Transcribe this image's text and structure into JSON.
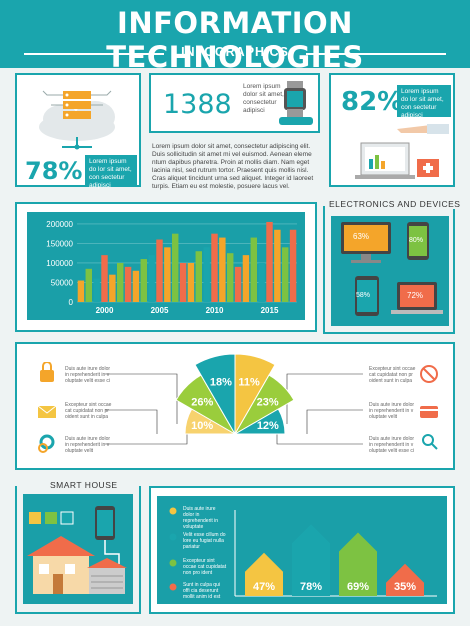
{
  "header": {
    "title": "INFORMATION TECHNOLOGIES",
    "subtitle": "INFOGRAPHICS"
  },
  "stats": {
    "cloud_pct": "78%",
    "cloud_text": "Lorem ipsum do lor sit amet, con sectetur adipisci",
    "count": "1388",
    "count_text": "Lorem ipsum dolor sit amet, consectetur adipisci",
    "devices_pct": "82%",
    "devices_text": "Lorem ipsum do lor sit amet, con sectetur adipisci",
    "center_text": "Lorem ipsum dolor sit amet, consectetur adipiscing elit. Duis sollicitudin sit amet mi vel euismod. Aenean eleme ntum dapibus pharetra. Proin at mollis diam. Nam eget lacinia nisl, sed rutrum tortor. Praesent quis mollis nisl. Cras aliquet tincidunt urna sed aliquet. Integer id laoreet turpis. Etiam eu est molestie, posuere lacus vel."
  },
  "electronics": {
    "title": "ELECTRONICS AND DEVICES",
    "monitor": "63%",
    "phone": "80%",
    "tablet": "58%",
    "laptop": "72%"
  },
  "chart_data": {
    "type": "bar",
    "categories": [
      "2000",
      "2005",
      "2010",
      "2015"
    ],
    "y_ticks": [
      "200000",
      "150000",
      "100000",
      "50000",
      "0"
    ],
    "ylim": [
      0,
      210000
    ],
    "series": [
      {
        "color": "#f4a52a",
        "values": [
          55000,
          80000,
          100000,
          120000
        ]
      },
      {
        "color": "#7dc242",
        "values": [
          85000,
          110000,
          130000,
          165000
        ]
      },
      {
        "color": "#1aa5ad",
        "values": [
          60000,
          120000,
          140000,
          100000
        ]
      },
      {
        "color": "#f06c4a",
        "values": [
          120000,
          160000,
          175000,
          205000
        ]
      },
      {
        "color": "#f4a52a",
        "values": [
          70000,
          140000,
          165000,
          185000
        ]
      },
      {
        "color": "#7dc242",
        "values": [
          100000,
          175000,
          125000,
          140000
        ]
      },
      {
        "color": "#f06c4a",
        "values": [
          90000,
          100000,
          90000,
          185000
        ]
      }
    ]
  },
  "fan": {
    "slices": [
      {
        "label": "10%",
        "color": "#f7d26e"
      },
      {
        "label": "26%",
        "color": "#9acd3c"
      },
      {
        "label": "18%",
        "color": "#1aa5ad"
      },
      {
        "label": "11%",
        "color": "#f4c542"
      },
      {
        "label": "23%",
        "color": "#9acd3c"
      },
      {
        "label": "12%",
        "color": "#1aa5ad"
      }
    ],
    "left_items": [
      {
        "text": "Duis aute irure dolor in reprehenderit in v oluptate velit esse ci"
      },
      {
        "text": "Excepteur sint occae cat cupidatat non pr oident sunt in culpa"
      },
      {
        "text": "Duis aute irure dolor in reprehenderit in v oluptate velit"
      }
    ],
    "right_items": [
      {
        "text": "Excepteur sint occae cat cupidatat non pr oident sunt in culpa"
      },
      {
        "text": "Duis aute irure dolor in reprehenderit in v oluptate velit"
      },
      {
        "text": "Duis aute irure dolor in reprehenderit in v oluptate velit esse ci"
      }
    ]
  },
  "smart_house": {
    "title": "SMART HOUSE",
    "legend": [
      {
        "text": "Duis aute irure dolor in reprehenderit in voluptate",
        "color": "#f4c542"
      },
      {
        "text": "Velit esse cillum do lore eu fugiat nulla pariatur",
        "color": "#1aa5ad"
      },
      {
        "text": "Excepteur sint occae cat cupidatat non pro ident",
        "color": "#7dc242"
      },
      {
        "text": "Sunt in culpa qui offi cia deserunt mollit anim id est",
        "color": "#f06c4a"
      }
    ],
    "houses": [
      {
        "label": "47%",
        "color": "#f4c542",
        "value": 47
      },
      {
        "label": "78%",
        "color": "#1aa5ad",
        "value": 78
      },
      {
        "label": "69%",
        "color": "#7dc242",
        "value": 69
      },
      {
        "label": "35%",
        "color": "#f06c4a",
        "value": 35
      }
    ]
  }
}
